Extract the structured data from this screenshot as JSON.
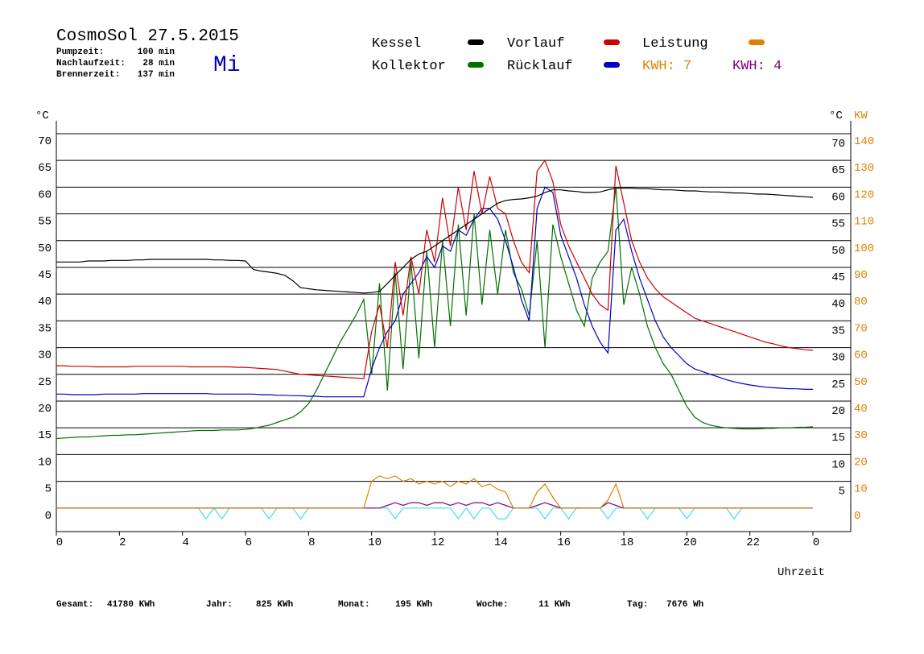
{
  "chart_data": {
    "type": "line",
    "title": "CosmoSol 27.5.2015",
    "weekday": "Mi",
    "info": [
      {
        "label": "Pumpzeit:",
        "value": "100 min"
      },
      {
        "label": "Nachlaufzeit:",
        "value": "28 min"
      },
      {
        "label": "Brennerzeit:",
        "value": "137 min"
      }
    ],
    "totals": [
      {
        "label": "Gesamt:",
        "value": "41780 KWh"
      },
      {
        "label": "Jahr:",
        "value": "825 KWh"
      },
      {
        "label": "Monat:",
        "value": "195 KWh"
      },
      {
        "label": "Woche:",
        "value": "11 KWh"
      },
      {
        "label": "Tag:",
        "value": "7676 Wh"
      }
    ],
    "kwh": [
      {
        "label": "KWH: 7",
        "color": "#e08000"
      },
      {
        "label": "KWH: 4",
        "color": "#800080"
      }
    ],
    "x_label": "Uhrzeit",
    "y_label": "°C",
    "y2_label_c": "°C",
    "y2_label": "KW",
    "xlim": [
      0,
      25.2
    ],
    "xticks": [
      0,
      2,
      4,
      6,
      8,
      10,
      12,
      14,
      16,
      18,
      20,
      22,
      {
        "value": 24,
        "label": "0"
      }
    ],
    "ylim": [
      -4.4,
      72.4
    ],
    "yticks": [
      0,
      5,
      10,
      15,
      20,
      25,
      30,
      35,
      40,
      45,
      50,
      55,
      60,
      65,
      70
    ],
    "right_yticks": [
      5,
      10,
      15,
      20,
      25,
      30,
      35,
      40,
      45,
      50,
      55,
      60,
      65,
      70
    ],
    "y2lim": [
      -8.8,
      144.8
    ],
    "y2ticks": [
      0,
      10,
      20,
      30,
      40,
      50,
      60,
      70,
      80,
      90,
      100,
      110,
      120,
      130,
      140
    ],
    "grid": true,
    "x": [
      0,
      0.25,
      0.5,
      0.75,
      1,
      1.25,
      1.5,
      1.75,
      2,
      2.25,
      2.5,
      2.75,
      3,
      3.25,
      3.5,
      3.75,
      4,
      4.25,
      4.5,
      4.75,
      5,
      5.25,
      5.5,
      5.75,
      6,
      6.25,
      6.5,
      6.75,
      7,
      7.25,
      7.5,
      7.75,
      8,
      8.25,
      8.5,
      8.75,
      9,
      9.25,
      9.5,
      9.75,
      10,
      10.25,
      10.5,
      10.75,
      11,
      11.25,
      11.5,
      11.75,
      12,
      12.25,
      12.5,
      12.75,
      13,
      13.25,
      13.5,
      13.75,
      14,
      14.25,
      14.5,
      14.75,
      15,
      15.25,
      15.5,
      15.75,
      16,
      16.25,
      16.5,
      16.75,
      17,
      17.25,
      17.5,
      17.75,
      18,
      18.25,
      18.5,
      18.75,
      19,
      19.25,
      19.5,
      19.75,
      20,
      20.25,
      20.5,
      20.75,
      21,
      21.25,
      21.5,
      21.75,
      22,
      22.25,
      22.5,
      22.75,
      23,
      23.25,
      23.5,
      23.75,
      24
    ],
    "series": [
      {
        "name": "Kessel",
        "color": "#000000",
        "values": [
          46,
          46,
          46,
          46,
          46.2,
          46.2,
          46.2,
          46.3,
          46.3,
          46.3,
          46.4,
          46.4,
          46.5,
          46.5,
          46.5,
          46.5,
          46.5,
          46.5,
          46.5,
          46.5,
          46.4,
          46.4,
          46.3,
          46.3,
          46.2,
          44.6,
          44.3,
          44.1,
          43.9,
          43.5,
          42.5,
          41.2,
          41,
          40.8,
          40.7,
          40.6,
          40.5,
          40.4,
          40.3,
          40.2,
          40.3,
          40.5,
          42,
          43.5,
          45,
          46.5,
          47.5,
          48,
          49,
          50,
          51,
          52,
          53,
          54,
          55,
          56,
          57,
          57.5,
          57.7,
          57.8,
          58,
          58.3,
          59,
          59.5,
          59.5,
          59.3,
          59.2,
          59,
          59,
          59.1,
          59.5,
          59.8,
          59.8,
          59.8,
          59.7,
          59.7,
          59.6,
          59.5,
          59.5,
          59.4,
          59.3,
          59.3,
          59.2,
          59.1,
          59.1,
          59,
          58.9,
          58.9,
          58.8,
          58.7,
          58.7,
          58.6,
          58.5,
          58.4,
          58.3,
          58.2,
          58.1
        ]
      },
      {
        "name": "Kollektor",
        "color": "#007000",
        "values": [
          13,
          13.1,
          13.2,
          13.3,
          13.3,
          13.4,
          13.5,
          13.6,
          13.6,
          13.7,
          13.7,
          13.8,
          13.9,
          14,
          14.1,
          14.2,
          14.3,
          14.4,
          14.5,
          14.5,
          14.5,
          14.6,
          14.6,
          14.6,
          14.7,
          14.9,
          15.2,
          15.5,
          16,
          16.5,
          17,
          18,
          19.5,
          22,
          25,
          28,
          31,
          33.5,
          36,
          39,
          25,
          42,
          22,
          44,
          26,
          46,
          28,
          48,
          30,
          50,
          34,
          53,
          36,
          55,
          38,
          52,
          40,
          52,
          44,
          41,
          36,
          50,
          30,
          53,
          47,
          42,
          37,
          34,
          43,
          46,
          48,
          60,
          38,
          45,
          40,
          34,
          30,
          27,
          25,
          22,
          19,
          17,
          16,
          15.5,
          15.2,
          15,
          14.9,
          14.8,
          14.8,
          14.8,
          14.9,
          14.9,
          15,
          15,
          15.1,
          15.1,
          15.2
        ]
      },
      {
        "name": "Vorlauf",
        "color": "#d00000",
        "values": [
          26.6,
          26.6,
          26.5,
          26.5,
          26.5,
          26.4,
          26.4,
          26.4,
          26.4,
          26.4,
          26.5,
          26.5,
          26.5,
          26.5,
          26.5,
          26.5,
          26.5,
          26.4,
          26.4,
          26.4,
          26.4,
          26.4,
          26.4,
          26.3,
          26.3,
          26.2,
          26.1,
          26,
          25.9,
          25.6,
          25.3,
          25,
          24.9,
          24.8,
          24.7,
          24.6,
          24.5,
          24.4,
          24.3,
          24.2,
          33,
          38,
          30,
          46,
          36,
          47,
          40,
          52,
          46,
          58,
          49,
          60,
          52,
          63,
          55,
          62,
          56,
          55,
          50,
          46,
          44,
          63,
          65,
          61,
          53,
          49,
          46,
          43,
          40,
          38,
          37,
          64,
          57,
          50,
          46,
          43,
          41,
          39.5,
          38.5,
          37.5,
          36.5,
          35.5,
          35,
          34.5,
          34,
          33.5,
          33,
          32.5,
          32,
          31.5,
          31,
          30.7,
          30.3,
          30,
          29.8,
          29.6,
          29.5
        ]
      },
      {
        "name": "Rücklauf",
        "color": "#0000c0",
        "values": [
          21.3,
          21.3,
          21.2,
          21.2,
          21.2,
          21.2,
          21.3,
          21.3,
          21.3,
          21.3,
          21.3,
          21.4,
          21.4,
          21.4,
          21.4,
          21.4,
          21.4,
          21.4,
          21.4,
          21.4,
          21.3,
          21.3,
          21.3,
          21.3,
          21.3,
          21.3,
          21.2,
          21.2,
          21.1,
          21.1,
          21,
          21,
          20.9,
          20.9,
          20.8,
          20.8,
          20.8,
          20.8,
          20.8,
          20.8,
          26,
          30,
          33,
          35,
          40,
          42,
          44,
          47,
          45,
          49,
          48,
          52,
          51,
          54,
          56,
          56,
          54,
          50,
          45,
          39,
          35,
          56,
          60,
          59,
          51,
          47,
          43,
          38,
          34,
          31,
          29,
          52,
          54,
          48,
          43,
          39,
          35,
          32,
          30,
          28.5,
          27,
          26,
          25.5,
          25,
          24.5,
          24,
          23.6,
          23.3,
          23,
          22.8,
          22.6,
          22.5,
          22.4,
          22.3,
          22.3,
          22.2,
          22.2
        ]
      },
      {
        "name": "Leistung",
        "color": "#e08000",
        "axis": "y2",
        "values": [
          0,
          0,
          0,
          0,
          0,
          0,
          0,
          0,
          0,
          0,
          0,
          0,
          0,
          0,
          0,
          0,
          0,
          0,
          0,
          0,
          0,
          0,
          0,
          0,
          0,
          0,
          0,
          0,
          0,
          0,
          0,
          0,
          0,
          0,
          0,
          0,
          0,
          0,
          0,
          0,
          10,
          12,
          11,
          12,
          10,
          11,
          9,
          10,
          9,
          10,
          8,
          10,
          9,
          11,
          8,
          9,
          7,
          6,
          0,
          0,
          0,
          6,
          9,
          4,
          0,
          0,
          0,
          0,
          0,
          0,
          3,
          9,
          0,
          0,
          0,
          0,
          0,
          0,
          0,
          0,
          0,
          0,
          0,
          0,
          0,
          0,
          0,
          0,
          0,
          0,
          0,
          0,
          0,
          0,
          0,
          0,
          0
        ]
      },
      {
        "color": "#800080",
        "axis": "y2",
        "values": [
          0,
          0,
          0,
          0,
          0,
          0,
          0,
          0,
          0,
          0,
          0,
          0,
          0,
          0,
          0,
          0,
          0,
          0,
          0,
          0,
          0,
          0,
          0,
          0,
          0,
          0,
          0,
          0,
          0,
          0,
          0,
          0,
          0,
          0,
          0,
          0,
          0,
          0,
          0,
          0,
          0,
          0,
          1,
          2,
          1,
          2,
          2,
          1,
          2,
          2,
          1,
          2,
          1,
          2,
          2,
          1,
          2,
          1,
          0,
          0,
          0,
          1,
          2,
          1,
          0,
          0,
          0,
          0,
          0,
          0,
          2,
          1,
          0,
          0,
          0,
          0,
          0,
          0,
          0,
          0,
          0,
          0,
          0,
          0,
          0,
          0,
          0,
          0,
          0,
          0,
          0,
          0,
          0,
          0,
          0,
          0,
          0
        ]
      },
      {
        "color": "#40e0e0",
        "values": [
          0,
          0,
          0,
          0,
          0,
          0,
          0,
          0,
          0,
          0,
          0,
          0,
          0,
          0,
          0,
          0,
          0,
          0,
          0,
          -2,
          0,
          -2,
          0,
          0,
          0,
          0,
          0,
          -2,
          0,
          0,
          0,
          -2,
          0,
          0,
          0,
          0,
          0,
          0,
          0,
          0,
          0,
          0,
          0,
          -2,
          0,
          0,
          0,
          0,
          0,
          0,
          0,
          -2,
          0,
          -2,
          0,
          0,
          -2,
          -2,
          0,
          0,
          0,
          0,
          -2,
          0,
          0,
          -2,
          0,
          0,
          0,
          0,
          -2,
          0,
          0,
          0,
          0,
          -2,
          0,
          0,
          0,
          0,
          -2,
          0,
          0,
          0,
          0,
          0,
          -2,
          0,
          0,
          0,
          0,
          0,
          0,
          0,
          0,
          0,
          0
        ]
      }
    ]
  }
}
